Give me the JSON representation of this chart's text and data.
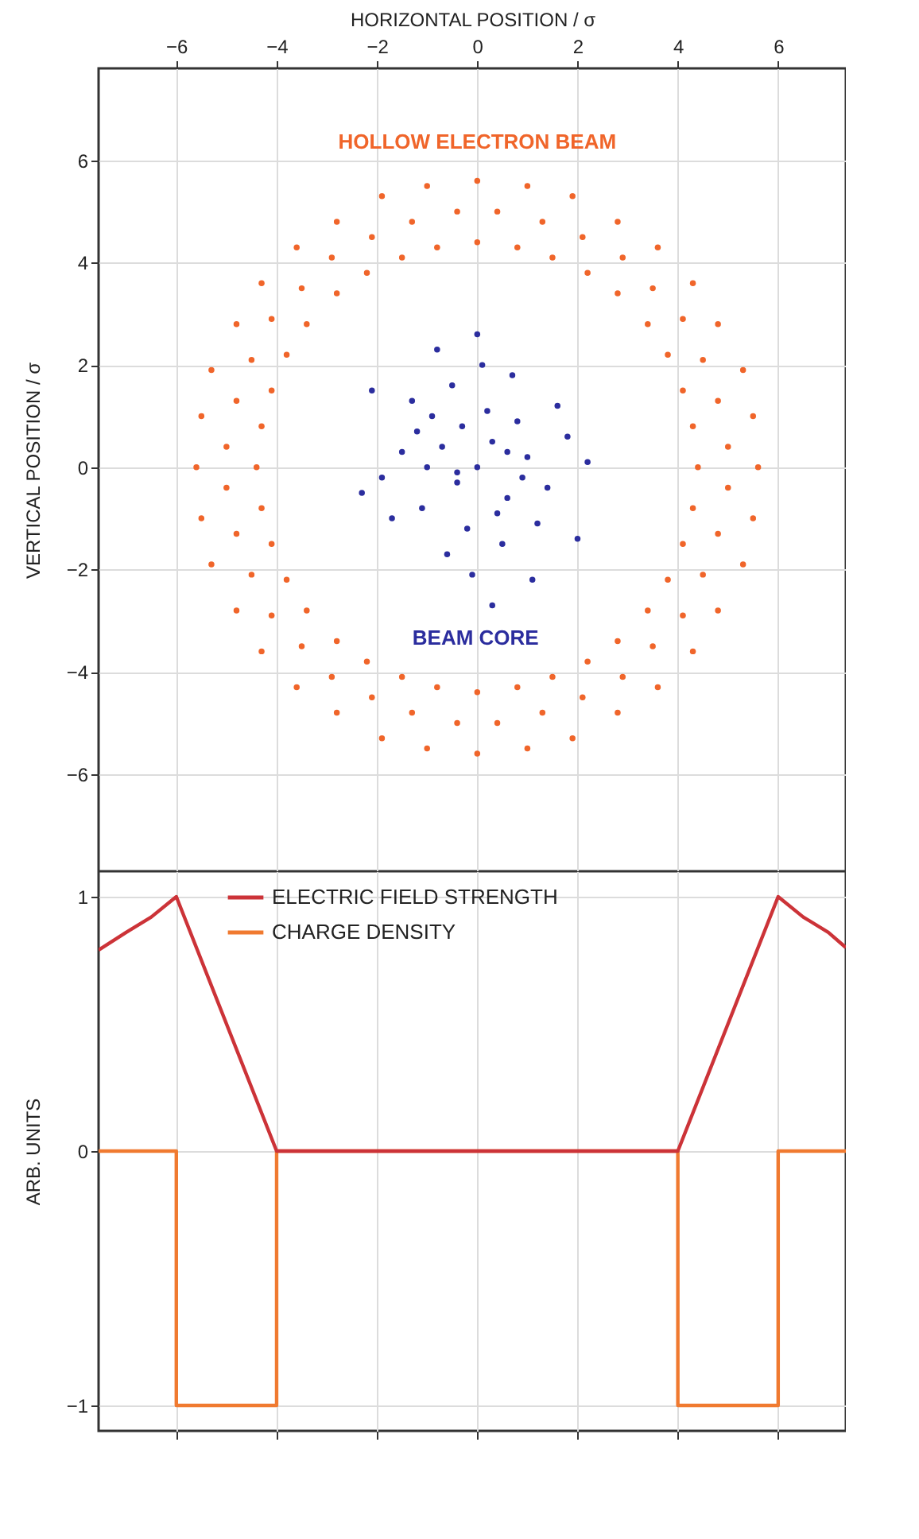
{
  "chart_data": [
    {
      "type": "scatter",
      "xlabel": "HORIZONTAL POSITION / σ",
      "ylabel": "VERTICAL POSITION / σ",
      "xlim": [
        -7.55,
        7.35
      ],
      "ylim": [
        -7.9,
        7.8
      ],
      "xticks": [
        -6,
        -4,
        -2,
        0,
        2,
        4,
        6
      ],
      "yticks": [
        -6,
        -4,
        -2,
        0,
        2,
        4,
        6
      ],
      "grid": true,
      "marker": "circle",
      "series": [
        {
          "name": "HOLLOW ELECTRON BEAM",
          "color": "#f0652a",
          "x": [
            4.4,
            4.3,
            4.1,
            3.8,
            3.4,
            2.8,
            2.2,
            1.5,
            0.8,
            5.6,
            5.5,
            5.3,
            4.8,
            4.3,
            3.6,
            2.8,
            1.9,
            1.0,
            5.0,
            4.8,
            4.5,
            4.1,
            3.5,
            2.9,
            2.1,
            1.3,
            0.4,
            0,
            -0.8,
            -1.5,
            -2.2,
            -2.8,
            -3.4,
            -3.8,
            -4.1,
            -4.3,
            0,
            -1.0,
            -1.9,
            -2.8,
            -3.6,
            -4.3,
            -4.8,
            -5.3,
            -5.5,
            -0.4,
            -1.3,
            -2.1,
            -2.9,
            -3.5,
            -4.1,
            -4.5,
            -4.8,
            -5.0,
            -4.4,
            -4.3,
            -4.1,
            -3.8,
            -3.4,
            -2.8,
            -2.2,
            -1.5,
            -0.8,
            -5.6,
            -5.5,
            -5.3,
            -4.8,
            -4.3,
            -3.6,
            -2.8,
            -1.9,
            -1.0,
            -5.0,
            -4.8,
            -4.5,
            -4.1,
            -3.5,
            -2.9,
            -2.1,
            -1.3,
            -0.4,
            0,
            0.8,
            1.5,
            2.2,
            2.8,
            3.4,
            3.8,
            4.1,
            4.3,
            0,
            1.0,
            1.9,
            2.8,
            3.6,
            4.3,
            4.8,
            5.3,
            5.5,
            0.4,
            1.3,
            2.1,
            2.9,
            3.5,
            4.1,
            4.5,
            4.8,
            5.0
          ],
          "values": [
            0,
            0.8,
            1.5,
            2.2,
            2.8,
            3.4,
            3.8,
            4.1,
            4.3,
            0,
            1.0,
            1.9,
            2.8,
            3.6,
            4.3,
            4.8,
            5.3,
            5.5,
            0.4,
            1.3,
            2.1,
            2.9,
            3.5,
            4.1,
            4.5,
            4.8,
            5.0,
            4.4,
            4.3,
            4.1,
            3.8,
            3.4,
            2.8,
            2.2,
            1.5,
            0.8,
            5.6,
            5.5,
            5.3,
            4.8,
            4.3,
            3.6,
            2.8,
            1.9,
            1.0,
            5.0,
            4.8,
            4.5,
            4.1,
            3.5,
            2.9,
            2.1,
            1.3,
            0.4,
            0,
            -0.8,
            -1.5,
            -2.2,
            -2.8,
            -3.4,
            -3.8,
            -4.1,
            -4.3,
            0,
            -1.0,
            -1.9,
            -2.8,
            -3.6,
            -4.3,
            -4.8,
            -5.3,
            -5.5,
            -0.4,
            -1.3,
            -2.1,
            -2.9,
            -3.5,
            -4.1,
            -4.5,
            -4.8,
            -5.0,
            -4.4,
            -4.3,
            -4.1,
            -3.8,
            -3.4,
            -2.8,
            -2.2,
            -1.5,
            -0.8,
            -5.6,
            -5.5,
            -5.3,
            -4.8,
            -4.3,
            -3.6,
            -2.8,
            -1.9,
            -1.0,
            -5.0,
            -4.8,
            -4.5,
            -4.1,
            -3.5,
            -2.9,
            -2.1,
            -1.3,
            -0.4
          ]
        },
        {
          "name": "BEAM CORE",
          "color": "#2b2d9e",
          "x": [
            0,
            0.3,
            -0.4,
            0.6,
            -0.7,
            1.0,
            -1.1,
            0.2,
            -0.2,
            0.8,
            -0.9,
            1.4,
            -1.5,
            0.5,
            -0.5,
            1.8,
            -1.9,
            0.1,
            -0.1,
            1.2,
            -1.3,
            2.2,
            -2.3,
            0.7,
            -0.6,
            0.4,
            -0.3,
            1.6,
            -1.7,
            0.9,
            -1.0,
            2.0,
            -2.1,
            0.0,
            0.3,
            -0.8,
            1.1,
            -1.2,
            0.6,
            -0.4
          ],
          "values": [
            0,
            0.5,
            -0.3,
            -0.6,
            0.4,
            0.2,
            -0.8,
            1.1,
            -1.2,
            0.9,
            1.0,
            -0.4,
            0.3,
            -1.5,
            1.6,
            0.6,
            -0.2,
            2.0,
            -2.1,
            -1.1,
            1.3,
            0.1,
            -0.5,
            1.8,
            -1.7,
            -0.9,
            0.8,
            1.2,
            -1.0,
            -0.2,
            0.0,
            -1.4,
            1.5,
            2.6,
            -2.7,
            2.3,
            -2.2,
            0.7,
            0.3,
            -0.1
          ]
        }
      ]
    },
    {
      "type": "line",
      "ylabel": "ARB. UNITS",
      "xlim": [
        -7.55,
        7.35
      ],
      "ylim": [
        -1.1,
        1.1
      ],
      "xticks": [
        -6,
        -4,
        -2,
        0,
        2,
        4,
        6
      ],
      "yticks": [
        -1,
        0,
        1
      ],
      "grid": true,
      "legend": "top left",
      "tick_labels": "y",
      "series": [
        {
          "name": "ELECTRIC FIELD STRENGTH",
          "color": "#cc3338",
          "x": [
            -7.55,
            -7,
            -6.5,
            -6,
            -4,
            4,
            6,
            6.5,
            7,
            7.35
          ],
          "values": [
            0.79,
            0.86,
            0.92,
            1,
            0,
            0,
            1,
            0.92,
            0.86,
            0.8
          ]
        },
        {
          "name": "CHARGE DENSITY",
          "color": "#f07a30",
          "x": [
            -7.55,
            -6,
            -6,
            -4,
            -4,
            4,
            4,
            6,
            6,
            7.35
          ],
          "values": [
            0,
            0,
            -1,
            -1,
            0,
            0,
            -1,
            -1,
            0,
            0
          ]
        }
      ]
    }
  ]
}
